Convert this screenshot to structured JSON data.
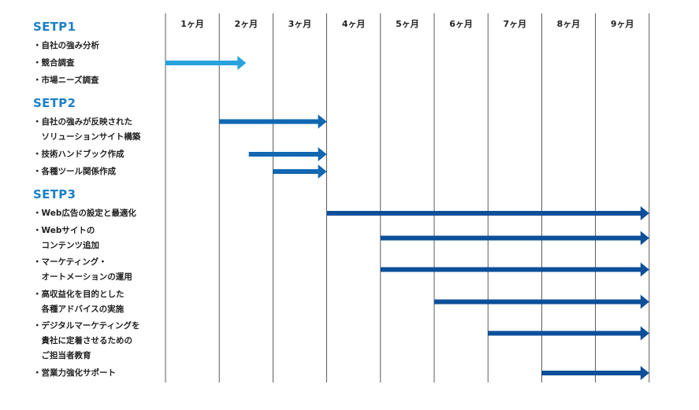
{
  "chart_data": {
    "type": "gantt",
    "months": [
      "1ヶ月",
      "2ヶ月",
      "3ヶ月",
      "4ヶ月",
      "5ヶ月",
      "6ヶ月",
      "7ヶ月",
      "8ヶ月",
      "9ヶ月"
    ],
    "phases": [
      {
        "name": "SETP1",
        "color": "#1b80c8",
        "tasks": [
          {
            "lines": [
              "・自社の強み分析"
            ]
          },
          {
            "lines": [
              "・競合調査"
            ],
            "start": 0,
            "end": 1.5,
            "color": "#29a3de"
          },
          {
            "lines": [
              "・市場ニーズ調査"
            ]
          }
        ]
      },
      {
        "name": "SETP2",
        "color": "#1b80c8",
        "tasks": [
          {
            "lines": [
              "・自社の強みが反映された",
              "　ソリューションサイト構築"
            ],
            "start": 1,
            "end": 3,
            "color": "#1168b1"
          },
          {
            "lines": [
              "・技術ハンドブック作成"
            ],
            "start": 1.55,
            "end": 3,
            "color": "#1168b1"
          },
          {
            "lines": [
              "・各種ツール関係作成"
            ],
            "start": 2,
            "end": 3,
            "color": "#1168b1"
          }
        ]
      },
      {
        "name": "SETP3",
        "color": "#1b80c8",
        "tasks": [
          {
            "lines": [
              "・Web広告の設定と最適化"
            ],
            "start": 3,
            "end": 9,
            "color": "#0c4f9a"
          },
          {
            "lines": [
              "・Webサイトの",
              "　コンテンツ追加"
            ],
            "start": 4,
            "end": 9,
            "color": "#0c4f9a"
          },
          {
            "lines": [
              "・マーケティング・",
              "　オートメーションの運用"
            ],
            "start": 4,
            "end": 9,
            "color": "#0c4f9a"
          },
          {
            "lines": [
              "・高収益化を目的とした",
              "　各種アドバイスの実施"
            ],
            "start": 5,
            "end": 9,
            "color": "#0c4f9a"
          },
          {
            "lines": [
              "・デジタルマーケティングを",
              "　貴社に定着させるための",
              "　ご担当者教育"
            ],
            "start": 6,
            "end": 9,
            "color": "#0c4f9a"
          },
          {
            "lines": [
              "・営業力強化サポート"
            ],
            "start": 7,
            "end": 9,
            "color": "#0c4f9a"
          }
        ]
      }
    ],
    "grid": "vertical-month-lines"
  }
}
